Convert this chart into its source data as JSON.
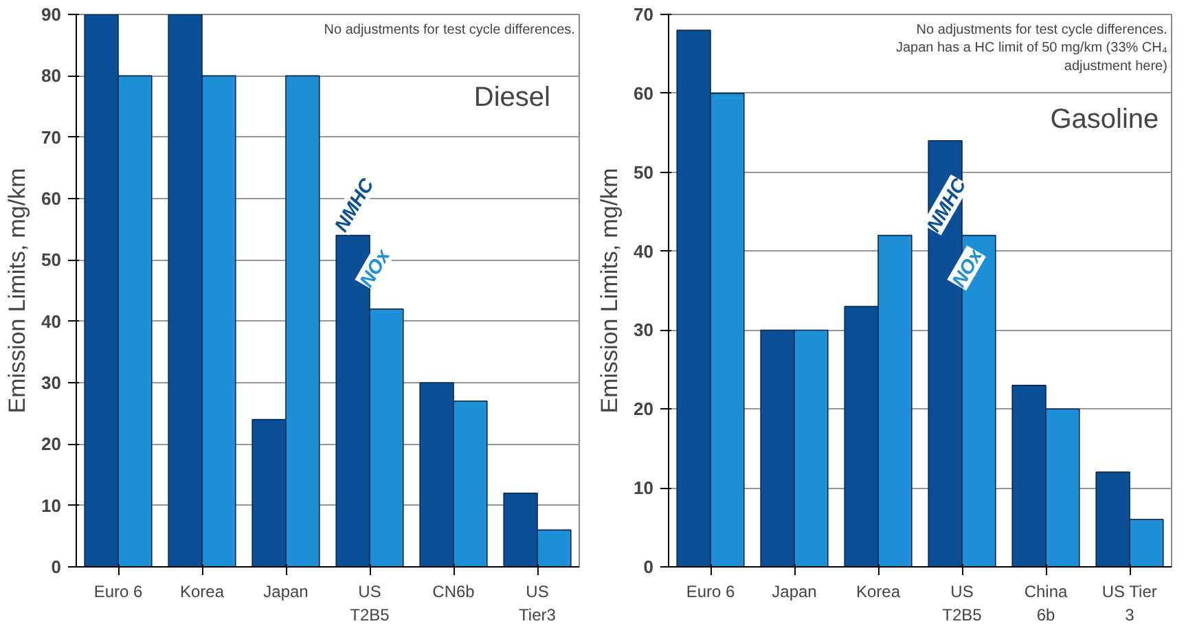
{
  "chart_data": [
    {
      "type": "bar",
      "ylabel": "Emission Limits, mg/km",
      "categories": [
        "Euro 6",
        "Korea",
        "Japan",
        "US\nT2B5",
        "CN6b",
        "US\nTier3"
      ],
      "series": [
        {
          "name": "NMHC",
          "color": "#0b4f96",
          "values": [
            90,
            90,
            24,
            54,
            30,
            12
          ]
        },
        {
          "name": "NOx",
          "color": "#1e90d8",
          "values": [
            80,
            80,
            80,
            42,
            27,
            6
          ]
        }
      ],
      "ylim": [
        0,
        90
      ],
      "yticks": [
        0,
        10,
        20,
        30,
        40,
        50,
        60,
        70,
        80,
        90
      ],
      "grid": "y",
      "annotations": [
        "No adjustments for test cycle differences.",
        "Diesel"
      ]
    },
    {
      "type": "bar",
      "ylabel": "Emission Limits, mg/km",
      "categories": [
        "Euro 6",
        "Japan",
        "Korea",
        "US\nT2B5",
        "China\n6b",
        "US Tier\n3"
      ],
      "series": [
        {
          "name": "NMHC",
          "color": "#0b4f96",
          "values": [
            68,
            30,
            33,
            54,
            23,
            12
          ]
        },
        {
          "name": "NOx",
          "color": "#1e90d8",
          "values": [
            60,
            30,
            42,
            42,
            20,
            6
          ]
        }
      ],
      "ylim": [
        0,
        70
      ],
      "yticks": [
        0,
        10,
        20,
        30,
        40,
        50,
        60,
        70
      ],
      "grid": "y",
      "annotations": [
        "No adjustments for test cycle differences.\nJapan has a HC limit of 50 mg/km (33% CH₄\nadjustment here)",
        "Gasoline"
      ]
    }
  ]
}
